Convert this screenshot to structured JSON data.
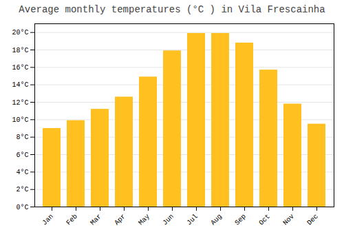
{
  "chart_data": {
    "type": "bar",
    "title": "Average monthly temperatures (°C ) in Vila Frescainha",
    "categories": [
      "Jan",
      "Feb",
      "Mar",
      "Apr",
      "May",
      "Jun",
      "Jul",
      "Aug",
      "Sep",
      "Oct",
      "Nov",
      "Dec"
    ],
    "values": [
      9.0,
      9.9,
      11.2,
      12.6,
      14.9,
      17.9,
      19.9,
      19.9,
      18.8,
      15.7,
      11.8,
      9.5
    ],
    "color": "#FFC020",
    "ylim": [
      0,
      21
    ],
    "yticks": [
      {
        "value": 0,
        "label": "0°C"
      },
      {
        "value": 2,
        "label": "2°C"
      },
      {
        "value": 4,
        "label": "4°C"
      },
      {
        "value": 6,
        "label": "6°C"
      },
      {
        "value": 8,
        "label": "8°C"
      },
      {
        "value": 10,
        "label": "10°C"
      },
      {
        "value": 12,
        "label": "12°C"
      },
      {
        "value": 14,
        "label": "14°C"
      },
      {
        "value": 16,
        "label": "16°C"
      },
      {
        "value": 18,
        "label": "18°C"
      },
      {
        "value": 20,
        "label": "20°C"
      }
    ],
    "grid": true
  }
}
